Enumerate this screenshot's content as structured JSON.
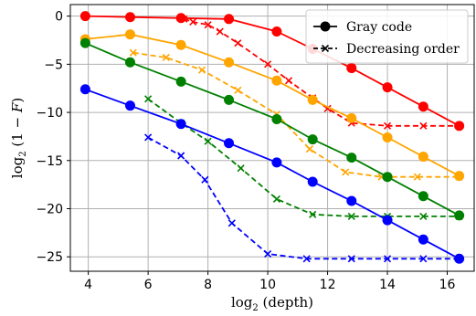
{
  "chart_data": {
    "type": "line",
    "title": "",
    "xlabel_parts": [
      "log",
      "2",
      " (depth)"
    ],
    "ylabel_parts": [
      "log",
      "2",
      " (1 − ",
      "F",
      ")"
    ],
    "xlim": [
      3.4,
      16.9
    ],
    "ylim": [
      -26.5,
      1.2
    ],
    "xticks": [
      4,
      6,
      8,
      10,
      12,
      14,
      16
    ],
    "yticks": [
      0,
      -5,
      -10,
      -15,
      -20,
      -25
    ],
    "grid": true,
    "legend": {
      "placement": "top-right",
      "entries": [
        {
          "label": "Gray code",
          "style": "solid",
          "marker": "circle"
        },
        {
          "label": "Decreasing order",
          "style": "dashed",
          "marker": "x"
        }
      ]
    },
    "series": [
      {
        "color": "#ff0000",
        "style": "solid",
        "marker": "circle",
        "x": [
          3.9,
          5.4,
          7.1,
          8.7,
          10.3,
          11.5,
          12.8,
          14.0,
          15.2,
          16.4
        ],
        "y": [
          0.0,
          -0.1,
          -0.2,
          -0.3,
          -1.6,
          -3.4,
          -5.4,
          -7.4,
          -9.4,
          -11.4
        ]
      },
      {
        "color": "#ff0000",
        "style": "dashed",
        "marker": "x",
        "x": [
          7.2,
          7.5,
          8.0,
          8.4,
          9.0,
          10.0,
          10.7,
          11.5,
          12.0,
          12.8,
          14.0,
          15.2,
          16.4
        ],
        "y": [
          -0.3,
          -0.6,
          -0.9,
          -1.6,
          -2.8,
          -5.0,
          -6.7,
          -8.5,
          -9.6,
          -11.1,
          -11.4,
          -11.4,
          -11.4
        ]
      },
      {
        "color": "#ffa500",
        "style": "solid",
        "marker": "circle",
        "x": [
          3.9,
          5.4,
          7.1,
          8.7,
          10.3,
          11.5,
          12.8,
          14.0,
          15.2,
          16.4
        ],
        "y": [
          -2.4,
          -1.9,
          -3.0,
          -4.8,
          -6.7,
          -8.7,
          -10.6,
          -12.6,
          -14.6,
          -16.6
        ]
      },
      {
        "color": "#ffa500",
        "style": "dashed",
        "marker": "x",
        "x": [
          5.5,
          6.6,
          7.8,
          9.0,
          10.3,
          11.4,
          12.6,
          13.8,
          15.0,
          16.4
        ],
        "y": [
          -3.8,
          -4.3,
          -5.6,
          -7.7,
          -10.2,
          -13.8,
          -16.2,
          -16.7,
          -16.7,
          -16.7
        ]
      },
      {
        "color": "#008000",
        "style": "solid",
        "marker": "circle",
        "x": [
          3.9,
          5.4,
          7.1,
          8.7,
          10.3,
          11.5,
          12.8,
          14.0,
          15.2,
          16.4
        ],
        "y": [
          -2.8,
          -4.8,
          -6.8,
          -8.7,
          -10.7,
          -12.8,
          -14.7,
          -16.7,
          -18.7,
          -20.7
        ]
      },
      {
        "color": "#008000",
        "style": "dashed",
        "marker": "x",
        "x": [
          6.0,
          7.1,
          8.0,
          9.1,
          10.3,
          11.5,
          12.8,
          14.0,
          15.2,
          16.4
        ],
        "y": [
          -8.6,
          -11.1,
          -13.0,
          -15.8,
          -19.0,
          -20.6,
          -20.8,
          -20.8,
          -20.8,
          -20.8
        ]
      },
      {
        "color": "#0000ff",
        "style": "solid",
        "marker": "circle",
        "x": [
          3.9,
          5.4,
          7.1,
          8.7,
          10.3,
          11.5,
          12.8,
          14.0,
          15.2,
          16.4
        ],
        "y": [
          -7.6,
          -9.3,
          -11.2,
          -13.2,
          -15.2,
          -17.2,
          -19.2,
          -21.2,
          -23.2,
          -25.2
        ]
      },
      {
        "color": "#0000ff",
        "style": "dashed",
        "marker": "x",
        "x": [
          6.0,
          7.1,
          7.9,
          8.8,
          10.0,
          11.3,
          12.8,
          14.0,
          15.2,
          16.4
        ],
        "y": [
          -12.6,
          -14.5,
          -17.0,
          -21.5,
          -24.7,
          -25.2,
          -25.2,
          -25.2,
          -25.2,
          -25.2
        ]
      }
    ]
  }
}
